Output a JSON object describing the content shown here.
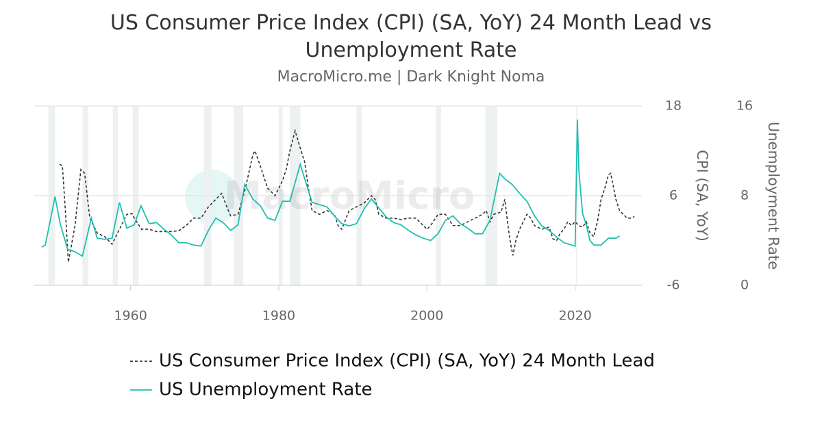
{
  "chart_data": {
    "type": "line",
    "title": "US Consumer Price Index (CPI) (SA, YoY) 24 Month Lead vs Unemployment Rate",
    "subtitle": "MacroMicro.me | Dark Knight Noma",
    "watermark": "MacroMicro",
    "y_label": "CPI (SA, YoY)",
    "y2_label": "Unemployment Rate",
    "xlim": [
      1947,
      2029
    ],
    "xticks": [
      1960,
      1980,
      2000,
      2020
    ],
    "ylim": [
      -6,
      18
    ],
    "yticks": [
      -6,
      6,
      18
    ],
    "y2lim": [
      0,
      16
    ],
    "y2ticks": [
      0,
      8,
      16
    ],
    "grid": true,
    "recessions": [
      [
        1948.9,
        1949.8
      ],
      [
        1953.5,
        1954.3
      ],
      [
        1957.6,
        1958.3
      ],
      [
        1960.3,
        1961.1
      ],
      [
        1969.9,
        1970.9
      ],
      [
        1973.9,
        1975.2
      ],
      [
        1980.0,
        1980.5
      ],
      [
        1981.5,
        1982.9
      ],
      [
        1990.5,
        1991.2
      ],
      [
        2001.2,
        2001.9
      ],
      [
        2007.9,
        2009.5
      ],
      [
        2020.1,
        2020.3
      ]
    ],
    "recession_color": "#eef1f1",
    "series": [
      {
        "name": "US Consumer Price Index (CPI) (SA, YoY) 24 Month Lead",
        "color": "#333333",
        "dashed": true,
        "axis": "y",
        "x": [
          1950.4,
          1950.8,
          1951.2,
          1951.6,
          1952.5,
          1953.3,
          1953.8,
          1954.5,
          1955.5,
          1956.5,
          1957.5,
          1958.5,
          1959.5,
          1960.2,
          1960.5,
          1961.5,
          1962.5,
          1963.5,
          1964.5,
          1965.5,
          1966.5,
          1967.5,
          1968.5,
          1969.5,
          1970.5,
          1971.5,
          1972.3,
          1973.0,
          1973.5,
          1974.5,
          1975.5,
          1976.5,
          1976.8,
          1977.5,
          1978.5,
          1979.5,
          1980.5,
          1981.0,
          1981.5,
          1982.2,
          1982.7,
          1983.5,
          1984.0,
          1984.5,
          1985.5,
          1986.5,
          1987.5,
          1988.0,
          1988.5,
          1989.5,
          1990.5,
          1991.5,
          1992.5,
          1993.0,
          1993.5,
          1994.5,
          1995.5,
          1996.5,
          1997.5,
          1998.5,
          1999.5,
          2000.0,
          2000.5,
          2001.5,
          2002.5,
          2003.5,
          2004.5,
          2005.5,
          2006.5,
          2007.5,
          2008.0,
          2008.5,
          2009.0,
          2010.0,
          2010.5,
          2011.0,
          2011.3,
          2011.6,
          2012.0,
          2012.5,
          2013.5,
          2014.0,
          2014.5,
          2015.5,
          2016.5,
          2017.0,
          2017.5,
          2018.0,
          2018.5,
          2019.0,
          2019.5,
          2020.0,
          2020.5,
          2021.0,
          2021.5,
          2022.0,
          2022.5,
          2023.0,
          2023.5,
          2024.0,
          2024.5,
          2024.8,
          2025.2,
          2025.5,
          2026.0,
          2026.5,
          2027.0,
          2027.5,
          2028.0
        ],
        "values": [
          10.2,
          10.0,
          4.0,
          -2.9,
          2.0,
          9.5,
          9.0,
          3.0,
          1.0,
          0.5,
          -0.5,
          1.5,
          3.5,
          3.6,
          3.0,
          1.5,
          1.5,
          1.2,
          1.2,
          1.2,
          1.3,
          2.0,
          3.0,
          3.0,
          4.5,
          5.5,
          6.3,
          4.5,
          3.3,
          3.5,
          7.0,
          11.5,
          12.0,
          10.0,
          7.0,
          6.0,
          8.0,
          9.5,
          12.0,
          14.7,
          13.0,
          10.5,
          7.0,
          4.0,
          3.5,
          4.0,
          3.5,
          2.0,
          1.5,
          4.0,
          4.5,
          5.0,
          6.0,
          5.5,
          3.5,
          3.0,
          3.0,
          2.8,
          3.0,
          3.0,
          2.0,
          1.5,
          2.0,
          3.5,
          3.5,
          2.0,
          2.0,
          2.5,
          3.0,
          3.5,
          4.0,
          2.5,
          3.5,
          3.8,
          5.5,
          1.5,
          -0.5,
          -2.0,
          0,
          1.5,
          3.5,
          3.0,
          2.0,
          1.5,
          1.8,
          0.2,
          0.0,
          1.0,
          1.5,
          2.5,
          2.0,
          2.5,
          2.0,
          1.8,
          2.5,
          1.0,
          0.5,
          2.5,
          5.5,
          7.0,
          8.8,
          9.0,
          7.0,
          5.5,
          4.0,
          3.5,
          3.0,
          3.0,
          3.2
        ]
      },
      {
        "name": "US Unemployment Rate",
        "color": "#1fbfb0",
        "dashed": false,
        "axis": "y2",
        "x": [
          1948.0,
          1948.5,
          1949.8,
          1950.5,
          1951.5,
          1952.5,
          1953.5,
          1954.7,
          1955.5,
          1956.5,
          1957.5,
          1958.5,
          1959.5,
          1960.5,
          1961.4,
          1962.5,
          1963.5,
          1964.5,
          1965.5,
          1966.5,
          1967.5,
          1968.5,
          1969.5,
          1970.5,
          1971.5,
          1972.5,
          1973.5,
          1974.5,
          1975.4,
          1976.5,
          1977.5,
          1978.5,
          1979.5,
          1980.5,
          1981.5,
          1982.9,
          1983.5,
          1984.5,
          1985.5,
          1986.5,
          1987.5,
          1988.5,
          1989.5,
          1990.5,
          1991.5,
          1992.5,
          1993.5,
          1994.5,
          1995.5,
          1996.5,
          1997.5,
          1998.5,
          1999.5,
          2000.5,
          2001.5,
          2002.5,
          2003.5,
          2004.5,
          2005.5,
          2006.5,
          2007.5,
          2008.5,
          2009.8,
          2010.5,
          2011.5,
          2012.5,
          2013.5,
          2014.5,
          2015.5,
          2016.5,
          2017.5,
          2018.5,
          2019.5,
          2020.0,
          2020.3,
          2020.5,
          2021.0,
          2021.5,
          2022.0,
          2022.5,
          2023.5,
          2024.5,
          2025.5,
          2026.0
        ],
        "values": [
          3.4,
          3.6,
          7.9,
          5.5,
          3.2,
          3.0,
          2.6,
          6.0,
          4.2,
          4.1,
          4.2,
          7.4,
          5.1,
          5.4,
          7.1,
          5.5,
          5.6,
          5.0,
          4.5,
          3.8,
          3.8,
          3.6,
          3.5,
          4.9,
          6.0,
          5.6,
          4.9,
          5.4,
          9.0,
          7.7,
          7.1,
          6.0,
          5.8,
          7.5,
          7.5,
          10.8,
          9.5,
          7.4,
          7.2,
          7.0,
          6.2,
          5.5,
          5.3,
          5.5,
          6.8,
          7.7,
          6.9,
          6.1,
          5.6,
          5.4,
          4.9,
          4.5,
          4.2,
          4.0,
          4.6,
          5.8,
          6.2,
          5.5,
          5.1,
          4.6,
          4.6,
          5.8,
          10.0,
          9.5,
          9.0,
          8.2,
          7.5,
          6.2,
          5.3,
          4.9,
          4.3,
          3.8,
          3.6,
          3.5,
          14.8,
          10.2,
          6.4,
          5.4,
          4.0,
          3.6,
          3.6,
          4.2,
          4.2,
          4.4
        ]
      }
    ]
  }
}
